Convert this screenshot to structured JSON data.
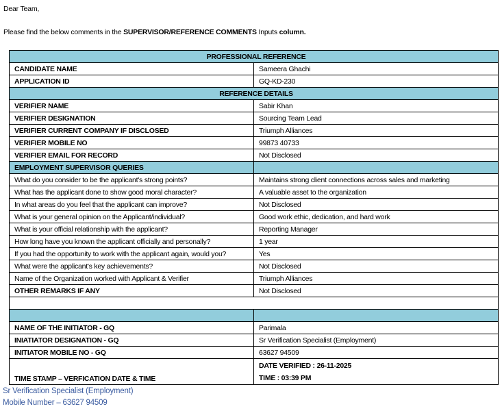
{
  "greeting": "Dear Team,",
  "intro": {
    "before": "Please find the below comments in the ",
    "bold": "SUPERVISOR/REFERENCE COMMENTS",
    "after": " Inputs ",
    "bold_end": "column."
  },
  "table": {
    "title": "PROFESSIONAL REFERENCE",
    "candidate_name": {
      "label": "CANDIDATE NAME",
      "value": "Sameera Ghachi"
    },
    "application_id": {
      "label": "APPLICATION ID",
      "value": "GQ-KD-230"
    },
    "reference_details": "REFERENCE DETAILS",
    "verifier": [
      {
        "label": "VERIFIER NAME",
        "value": "Sabir Khan"
      },
      {
        "label": "VERIFIER DESIGNATION",
        "value": "Sourcing Team Lead"
      },
      {
        "label": "VERIFIER CURRENT COMPANY IF DISCLOSED",
        "value": "Triumph Alliances"
      },
      {
        "label": "VERIFIER MOBILE NO",
        "value": "99873 40733"
      },
      {
        "label": "VERIFIER EMAIL FOR RECORD",
        "value": "Not Disclosed"
      }
    ],
    "queries_header": "EMPLOYMENT SUPERVISOR QUERIES",
    "queries": [
      {
        "label": "What do you consider to be the applicant's strong points?",
        "value": "Maintains strong client connections across sales and marketing"
      },
      {
        "label": "What has the applicant done to show good moral character?",
        "value": "A valuable asset to the organization"
      },
      {
        "label": "In what areas do you feel that the applicant can improve?",
        "value": "Not Disclosed"
      },
      {
        "label": "What is your general opinion on the Applicant/individual?",
        "value": "Good work ethic, dedication, and hard work"
      },
      {
        "label": "What is your official relationship with the applicant?",
        "value": "Reporting Manager"
      },
      {
        "label": "How long have you known the applicant officially and personally?",
        "value": "1 year"
      },
      {
        "label": "If you had the opportunity to work with the applicant again, would you?",
        "value": "Yes"
      },
      {
        "label": "What were the applicant's key achievements?",
        "value": "Not Disclosed"
      },
      {
        "label": "Name of the Organization worked with Applicant & Verifier",
        "value": "Triumph Alliances"
      }
    ],
    "other_remarks": {
      "label": "OTHER REMARKS IF ANY",
      "value": "Not Disclosed"
    },
    "initiator": [
      {
        "label": "NAME OF THE INITIATOR - GQ",
        "value": "Parimala"
      },
      {
        "label": "INIATIATOR DESIGNATION - GQ",
        "value": "Sr Verification Specialist (Employment)"
      },
      {
        "label": "INITIATOR MOBILE NO - GQ",
        "value": "63627 94509"
      }
    ],
    "timestamp": {
      "label": "TIME STAMP – VERFICATION DATE & TIME",
      "date": "DATE VERIFIED : 26-11-2025",
      "time": "TIME : 03:39 PM"
    }
  },
  "signature": {
    "designation": "Sr Verification Specialist (Employment)",
    "mobile": "Mobile Number – 63627 94509"
  },
  "colors": {
    "header_fill": "#92cddc",
    "signature_text": "#3a5ba0"
  }
}
